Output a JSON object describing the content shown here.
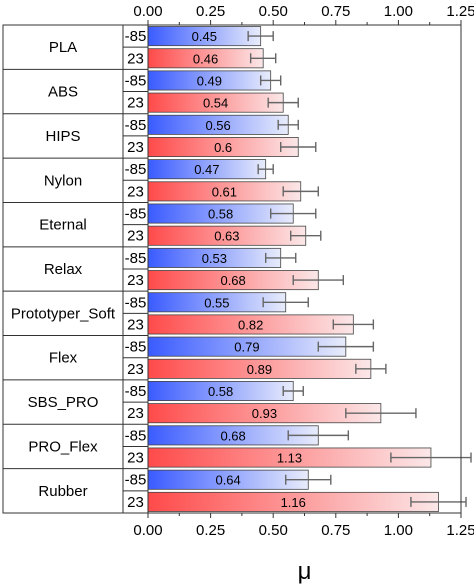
{
  "chart_data": {
    "type": "bar",
    "orientation": "horizontal",
    "xlabel": "μ",
    "xlim": [
      0,
      1.25
    ],
    "xticks": [
      "0.00",
      "0.25",
      "0.50",
      "0.75",
      "1.00",
      "1.25"
    ],
    "temperatures": [
      "-85",
      "23"
    ],
    "temperature_colors": {
      "-85": "#3a5bff",
      "23": "#ff4a4a"
    },
    "materials": [
      {
        "name": "PLA",
        "bars": [
          {
            "temp": "-85",
            "value": 0.45,
            "label": "0.45",
            "error": 0.05
          },
          {
            "temp": "23",
            "value": 0.46,
            "label": "0.46",
            "error": 0.05
          }
        ]
      },
      {
        "name": "ABS",
        "bars": [
          {
            "temp": "-85",
            "value": 0.49,
            "label": "0.49",
            "error": 0.04
          },
          {
            "temp": "23",
            "value": 0.54,
            "label": "0.54",
            "error": 0.06
          }
        ]
      },
      {
        "name": "HIPS",
        "bars": [
          {
            "temp": "-85",
            "value": 0.56,
            "label": "0.56",
            "error": 0.04
          },
          {
            "temp": "23",
            "value": 0.6,
            "label": "0.6",
            "error": 0.07
          }
        ]
      },
      {
        "name": "Nylon",
        "bars": [
          {
            "temp": "-85",
            "value": 0.47,
            "label": "0.47",
            "error": 0.03
          },
          {
            "temp": "23",
            "value": 0.61,
            "label": "0.61",
            "error": 0.07
          }
        ]
      },
      {
        "name": "Eternal",
        "bars": [
          {
            "temp": "-85",
            "value": 0.58,
            "label": "0.58",
            "error": 0.09
          },
          {
            "temp": "23",
            "value": 0.63,
            "label": "0.63",
            "error": 0.06
          }
        ]
      },
      {
        "name": "Relax",
        "bars": [
          {
            "temp": "-85",
            "value": 0.53,
            "label": "0.53",
            "error": 0.06
          },
          {
            "temp": "23",
            "value": 0.68,
            "label": "0.68",
            "error": 0.1
          }
        ]
      },
      {
        "name": "Prototyper_Soft",
        "bars": [
          {
            "temp": "-85",
            "value": 0.55,
            "label": "0.55",
            "error": 0.09
          },
          {
            "temp": "23",
            "value": 0.82,
            "label": "0.82",
            "error": 0.08
          }
        ]
      },
      {
        "name": "Flex",
        "bars": [
          {
            "temp": "-85",
            "value": 0.79,
            "label": "0.79",
            "error": 0.11
          },
          {
            "temp": "23",
            "value": 0.89,
            "label": "0.89",
            "error": 0.06
          }
        ]
      },
      {
        "name": "SBS_PRO",
        "bars": [
          {
            "temp": "-85",
            "value": 0.58,
            "label": "0.58",
            "error": 0.04
          },
          {
            "temp": "23",
            "value": 0.93,
            "label": "0.93",
            "error": 0.14
          }
        ]
      },
      {
        "name": "PRO_Flex",
        "bars": [
          {
            "temp": "-85",
            "value": 0.68,
            "label": "0.68",
            "error": 0.12
          },
          {
            "temp": "23",
            "value": 1.13,
            "label": "1.13",
            "error": 0.16
          }
        ]
      },
      {
        "name": "Rubber",
        "bars": [
          {
            "temp": "-85",
            "value": 0.64,
            "label": "0.64",
            "error": 0.09
          },
          {
            "temp": "23",
            "value": 1.16,
            "label": "1.16",
            "error": 0.11
          }
        ]
      }
    ],
    "grid": false,
    "legend": "none"
  }
}
